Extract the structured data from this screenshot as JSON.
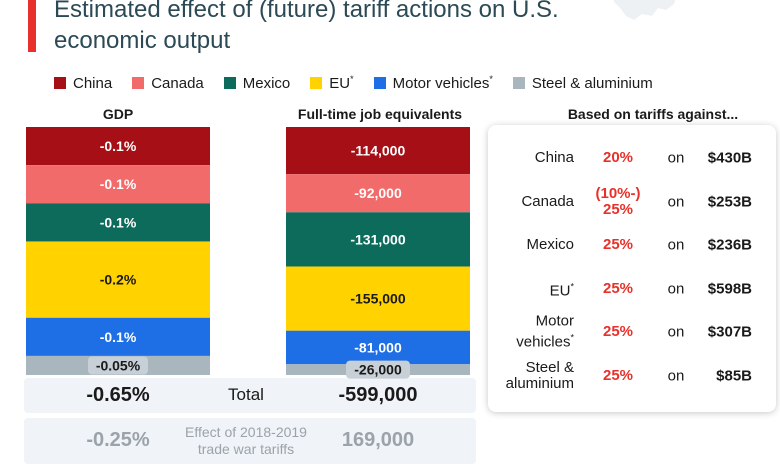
{
  "title": "Estimated effect of (future) tariff actions on U.S. economic output",
  "legend": [
    {
      "label": "China",
      "color": "#a50f15"
    },
    {
      "label": "Canada",
      "color": "#f26b6b"
    },
    {
      "label": "Mexico",
      "color": "#0d6b5b"
    },
    {
      "label": "EU",
      "marker": "*",
      "color": "#ffd200"
    },
    {
      "label": "Motor vehicles",
      "marker": "*",
      "color": "#1e6ee6"
    },
    {
      "label": "Steel & aluminium",
      "color": "#a9b6be"
    }
  ],
  "columns": {
    "gdp": "GDP",
    "jobs": "Full-time job equivalents",
    "tariffs": "Based on tariffs against..."
  },
  "chart_data": {
    "type": "bar",
    "stacked": true,
    "categories": [
      "GDP",
      "Full-time job equivalents"
    ],
    "series": [
      {
        "name": "China",
        "values": [
          -0.1,
          -114000
        ],
        "labels": [
          "-0.1%",
          "-114,000"
        ],
        "color": "#a50f15"
      },
      {
        "name": "Canada",
        "values": [
          -0.1,
          -92000
        ],
        "labels": [
          "-0.1%",
          "-92,000"
        ],
        "color": "#f26b6b"
      },
      {
        "name": "Mexico",
        "values": [
          -0.1,
          -131000
        ],
        "labels": [
          "-0.1%",
          "-131,000"
        ],
        "color": "#0d6b5b"
      },
      {
        "name": "EU*",
        "values": [
          -0.2,
          -155000
        ],
        "labels": [
          "-0.2%",
          "-155,000"
        ],
        "color": "#ffd200"
      },
      {
        "name": "Motor vehicles*",
        "values": [
          -0.1,
          -81000
        ],
        "labels": [
          "-0.1%",
          "-81,000"
        ],
        "color": "#1e6ee6"
      },
      {
        "name": "Steel & aluminium",
        "values": [
          -0.05,
          -26000
        ],
        "labels": [
          "-0.05%",
          "-26,000"
        ],
        "color": "#a9b6be"
      }
    ]
  },
  "totals": {
    "label": "Total",
    "gdp": "-0.65%",
    "jobs": "-599,000"
  },
  "trade_war": {
    "label_line1": "Effect of 2018-2019",
    "label_line2": "trade war tariffs",
    "gdp": "-0.25%",
    "jobs": "169,000"
  },
  "tariffs": [
    {
      "name": "China",
      "rate": "20%",
      "on": "on",
      "amount": "$430B"
    },
    {
      "name": "Canada",
      "rate_line1": "(10%-)",
      "rate_line2": "25%",
      "on": "on",
      "amount": "$253B"
    },
    {
      "name": "Mexico",
      "rate": "25%",
      "on": "on",
      "amount": "$236B"
    },
    {
      "name": "EU",
      "marker": "*",
      "rate": "25%",
      "on": "on",
      "amount": "$598B"
    },
    {
      "name_line1": "Motor",
      "name_line2": "vehicles",
      "marker": "*",
      "rate": "25%",
      "on": "on",
      "amount": "$307B"
    },
    {
      "name_line1": "Steel &",
      "name_line2": "aluminium",
      "rate": "25%",
      "on": "on",
      "amount": "$85B"
    }
  ]
}
